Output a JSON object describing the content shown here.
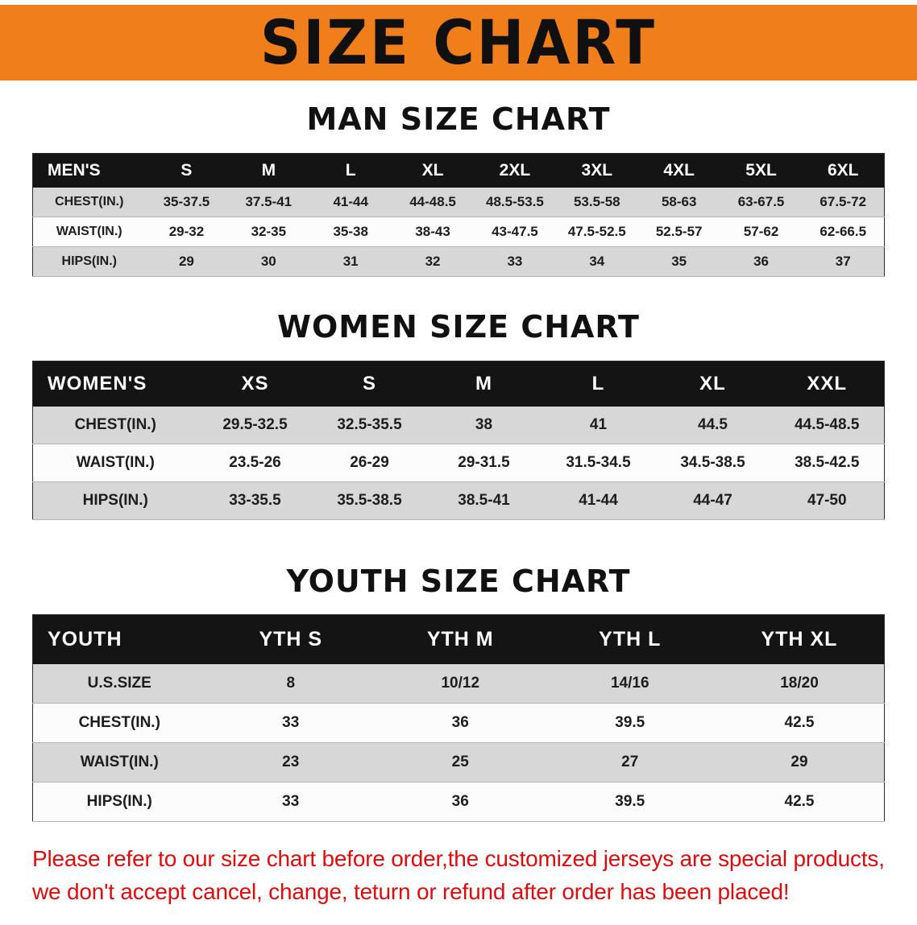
{
  "banner": {
    "title": "SIZE CHART"
  },
  "sections": {
    "men": {
      "heading": "MAN SIZE CHART",
      "table": {
        "header": [
          "MEN'S",
          "S",
          "M",
          "L",
          "XL",
          "2XL",
          "3XL",
          "4XL",
          "5XL",
          "6XL"
        ],
        "rows": [
          [
            "CHEST(IN.)",
            "35-37.5",
            "37.5-41",
            "41-44",
            "44-48.5",
            "48.5-53.5",
            "53.5-58",
            "58-63",
            "63-67.5",
            "67.5-72"
          ],
          [
            "WAIST(IN.)",
            "29-32",
            "32-35",
            "35-38",
            "38-43",
            "43-47.5",
            "47.5-52.5",
            "52.5-57",
            "57-62",
            "62-66.5"
          ],
          [
            "HIPS(IN.)",
            "29",
            "30",
            "31",
            "32",
            "33",
            "34",
            "35",
            "36",
            "37"
          ]
        ]
      }
    },
    "women": {
      "heading": "WOMEN SIZE CHART",
      "table": {
        "header": [
          "WOMEN'S",
          "XS",
          "S",
          "M",
          "L",
          "XL",
          "XXL"
        ],
        "rows": [
          [
            "CHEST(IN.)",
            "29.5-32.5",
            "32.5-35.5",
            "38",
            "41",
            "44.5",
            "44.5-48.5"
          ],
          [
            "WAIST(IN.)",
            "23.5-26",
            "26-29",
            "29-31.5",
            "31.5-34.5",
            "34.5-38.5",
            "38.5-42.5"
          ],
          [
            "HIPS(IN.)",
            "33-35.5",
            "35.5-38.5",
            "38.5-41",
            "41-44",
            "44-47",
            "47-50"
          ]
        ]
      }
    },
    "youth": {
      "heading": "YOUTH SIZE CHART",
      "table": {
        "header": [
          "YOUTH",
          "YTH S",
          "YTH M",
          "YTH L",
          "YTH XL"
        ],
        "rows": [
          [
            "U.S.SIZE",
            "8",
            "10/12",
            "14/16",
            "18/20"
          ],
          [
            "CHEST(IN.)",
            "33",
            "36",
            "39.5",
            "42.5"
          ],
          [
            "WAIST(IN.)",
            "23",
            "25",
            "27",
            "29"
          ],
          [
            "HIPS(IN.)",
            "33",
            "36",
            "39.5",
            "42.5"
          ]
        ]
      }
    }
  },
  "footer": {
    "line1": "Please refer to our size chart before order,the customized jerseys are special products,",
    "line2": "we don't accept cancel, change, teturn or refund after order has been placed!"
  },
  "colors": {
    "banner-bg": "#ef7e1b",
    "header-bg": "#141414",
    "stripe": "#d7d7d7",
    "notice-red": "#e00b0b"
  }
}
